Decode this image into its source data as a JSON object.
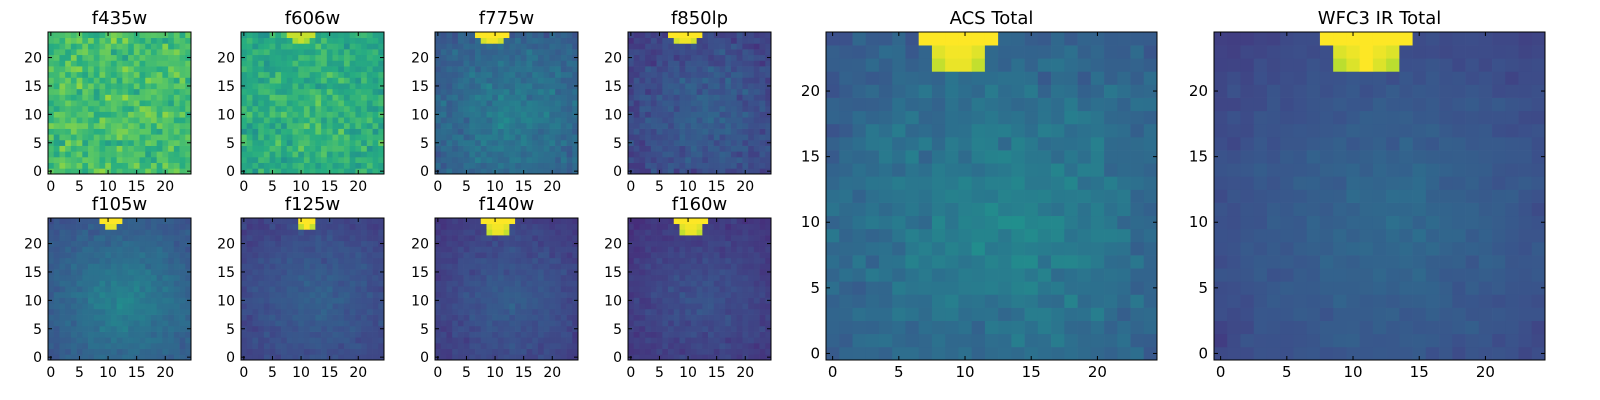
{
  "chart_data": [
    {
      "type": "heatmap",
      "title": "f435w",
      "image_shape": [
        25,
        25
      ],
      "origin": "lower",
      "xlim": [
        0,
        24
      ],
      "ylim": [
        0,
        24
      ],
      "xticks": [
        0,
        5,
        10,
        15,
        20
      ],
      "yticks": [
        0,
        5,
        10,
        15,
        20
      ],
      "mean_level": 0.7,
      "noise": 0.18,
      "radial_gradient": 0.0,
      "hotspot": null
    },
    {
      "type": "heatmap",
      "title": "f606w",
      "image_shape": [
        25,
        25
      ],
      "origin": "lower",
      "xlim": [
        0,
        24
      ],
      "ylim": [
        0,
        24
      ],
      "xticks": [
        0,
        5,
        10,
        15,
        20
      ],
      "yticks": [
        0,
        5,
        10,
        15,
        20
      ],
      "mean_level": 0.62,
      "noise": 0.16,
      "radial_gradient": 0.05,
      "hotspot": {
        "x_range": [
          8,
          12
        ],
        "y_range": [
          23,
          24
        ],
        "level": 0.92
      }
    },
    {
      "type": "heatmap",
      "title": "f775w",
      "image_shape": [
        25,
        25
      ],
      "origin": "lower",
      "xlim": [
        0,
        24
      ],
      "ylim": [
        0,
        24
      ],
      "xticks": [
        0,
        5,
        10,
        15,
        20
      ],
      "yticks": [
        0,
        5,
        10,
        15,
        20
      ],
      "mean_level": 0.32,
      "noise": 0.09,
      "radial_gradient": 0.12,
      "hotspot": {
        "x_range": [
          7,
          12
        ],
        "y_range": [
          23,
          24
        ],
        "level": 1.0
      }
    },
    {
      "type": "heatmap",
      "title": "f850lp",
      "image_shape": [
        25,
        25
      ],
      "origin": "lower",
      "xlim": [
        0,
        24
      ],
      "ylim": [
        0,
        24
      ],
      "xticks": [
        0,
        5,
        10,
        15,
        20
      ],
      "yticks": [
        0,
        5,
        10,
        15,
        20
      ],
      "mean_level": 0.22,
      "noise": 0.09,
      "radial_gradient": 0.1,
      "hotspot": {
        "x_range": [
          7,
          12
        ],
        "y_range": [
          23,
          24
        ],
        "level": 1.0
      }
    },
    {
      "type": "heatmap",
      "title": "ACS Total",
      "image_shape": [
        25,
        25
      ],
      "origin": "lower",
      "xlim": [
        0,
        24
      ],
      "ylim": [
        0,
        24
      ],
      "xticks": [
        0,
        5,
        10,
        15,
        20
      ],
      "yticks": [
        0,
        5,
        10,
        15,
        20
      ],
      "mean_level": 0.33,
      "noise": 0.08,
      "radial_gradient": 0.14,
      "hotspot": {
        "x_range": [
          7,
          12
        ],
        "y_range": [
          22,
          24
        ],
        "level": 1.0
      }
    },
    {
      "type": "heatmap",
      "title": "WFC3 IR Total",
      "image_shape": [
        25,
        25
      ],
      "origin": "lower",
      "xlim": [
        0,
        24
      ],
      "ylim": [
        0,
        24
      ],
      "xticks": [
        0,
        5,
        10,
        15,
        20
      ],
      "yticks": [
        0,
        5,
        10,
        15,
        20
      ],
      "mean_level": 0.24,
      "noise": 0.04,
      "radial_gradient": 0.12,
      "hotspot": {
        "x_range": [
          8,
          14
        ],
        "y_range": [
          22,
          24
        ],
        "level": 1.0
      }
    },
    {
      "type": "heatmap",
      "title": "f105w",
      "image_shape": [
        25,
        25
      ],
      "origin": "lower",
      "xlim": [
        0,
        24
      ],
      "ylim": [
        0,
        24
      ],
      "xticks": [
        0,
        5,
        10,
        15,
        20
      ],
      "yticks": [
        0,
        5,
        10,
        15,
        20
      ],
      "mean_level": 0.3,
      "noise": 0.06,
      "radial_gradient": 0.16,
      "hotspot": {
        "x_range": [
          9,
          12
        ],
        "y_range": [
          23,
          24
        ],
        "level": 1.0
      }
    },
    {
      "type": "heatmap",
      "title": "f125w",
      "image_shape": [
        25,
        25
      ],
      "origin": "lower",
      "xlim": [
        0,
        24
      ],
      "ylim": [
        0,
        24
      ],
      "xticks": [
        0,
        5,
        10,
        15,
        20
      ],
      "yticks": [
        0,
        5,
        10,
        15,
        20
      ],
      "mean_level": 0.22,
      "noise": 0.05,
      "radial_gradient": 0.1,
      "hotspot": {
        "x_range": [
          10,
          12
        ],
        "y_range": [
          23,
          24
        ],
        "level": 1.0
      }
    },
    {
      "type": "heatmap",
      "title": "f140w",
      "image_shape": [
        25,
        25
      ],
      "origin": "lower",
      "xlim": [
        0,
        24
      ],
      "ylim": [
        0,
        24
      ],
      "xticks": [
        0,
        5,
        10,
        15,
        20
      ],
      "yticks": [
        0,
        5,
        10,
        15,
        20
      ],
      "mean_level": 0.2,
      "noise": 0.05,
      "radial_gradient": 0.1,
      "hotspot": {
        "x_range": [
          8,
          13
        ],
        "y_range": [
          22,
          24
        ],
        "level": 1.0
      }
    },
    {
      "type": "heatmap",
      "title": "f160w",
      "image_shape": [
        25,
        25
      ],
      "origin": "lower",
      "xlim": [
        0,
        24
      ],
      "ylim": [
        0,
        24
      ],
      "xticks": [
        0,
        5,
        10,
        15,
        20
      ],
      "yticks": [
        0,
        5,
        10,
        15,
        20
      ],
      "mean_level": 0.18,
      "noise": 0.05,
      "radial_gradient": 0.08,
      "hotspot": {
        "x_range": [
          8,
          13
        ],
        "y_range": [
          22,
          24
        ],
        "level": 1.0
      }
    }
  ],
  "colormap": "viridis"
}
